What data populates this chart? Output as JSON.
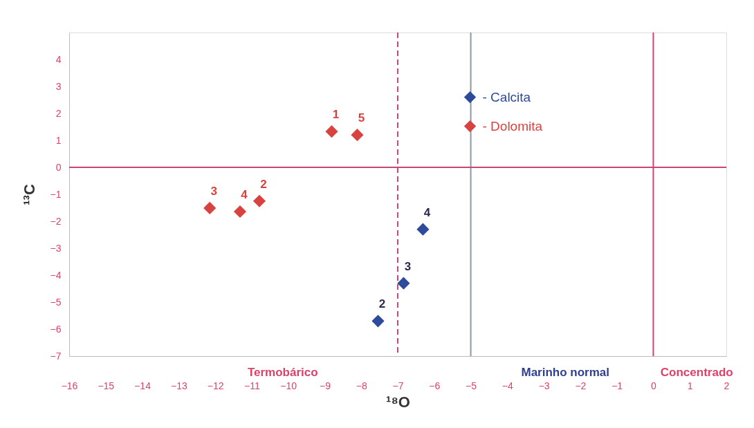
{
  "chart_data": {
    "type": "scatter",
    "xlabel": "¹⁸O",
    "ylabel": "¹³C",
    "xlim": [
      -16,
      2
    ],
    "ylim": [
      -7,
      5
    ],
    "xticks": [
      -16,
      -15,
      -14,
      -13,
      -12,
      -11,
      -10,
      -9,
      -8,
      -7,
      -6,
      -5,
      -4,
      -3,
      -2,
      -1,
      0,
      1,
      2
    ],
    "yticks": [
      -7,
      -6,
      -5,
      -4,
      -3,
      -2,
      -1,
      0,
      1,
      2,
      3,
      4
    ],
    "marker": "diamond",
    "grid": false,
    "legend": "top right",
    "series": [
      {
        "name": "- Calcita",
        "color": "#2e4a9a",
        "x": [
          -7.54,
          -6.84,
          -6.31
        ],
        "values": [
          -5.7,
          -4.3,
          -2.3
        ]
      },
      {
        "name": "- Dolomita",
        "color": "#d9433f",
        "x": [
          -8.81,
          -10.79,
          -12.15,
          -11.32,
          -8.11
        ],
        "values": [
          1.33,
          -1.25,
          -1.51,
          -1.64,
          1.2
        ]
      }
    ],
    "ref_lines": [
      {
        "axis": "x",
        "value": -7,
        "color": "#c8457a",
        "line_style": "dashed"
      },
      {
        "axis": "x",
        "value": -5,
        "color": "#8a9aa0",
        "line_style": "solid"
      },
      {
        "axis": "x",
        "value": 0,
        "color": "#c8457a",
        "line_style": "solid"
      },
      {
        "axis": "y",
        "value": 0,
        "color": "#c8457a",
        "line_style": "solid"
      }
    ],
    "annotations": [
      {
        "text": "2",
        "x": -7.54,
        "y": -5.7
      },
      {
        "text": "3",
        "x": -6.84,
        "y": -4.3
      },
      {
        "text": "4",
        "x": -6.31,
        "y": -2.3
      },
      {
        "text": "1",
        "x": -8.81,
        "y": 1.33
      },
      {
        "text": "2",
        "x": -10.79,
        "y": -1.25
      },
      {
        "text": "3",
        "x": -12.15,
        "y": -1.51
      },
      {
        "text": "4",
        "x": -11.32,
        "y": -1.64
      },
      {
        "text": "5",
        "x": -8.11,
        "y": 1.2
      },
      "Termobárico",
      "Marinho normal",
      "Concentrado"
    ]
  }
}
